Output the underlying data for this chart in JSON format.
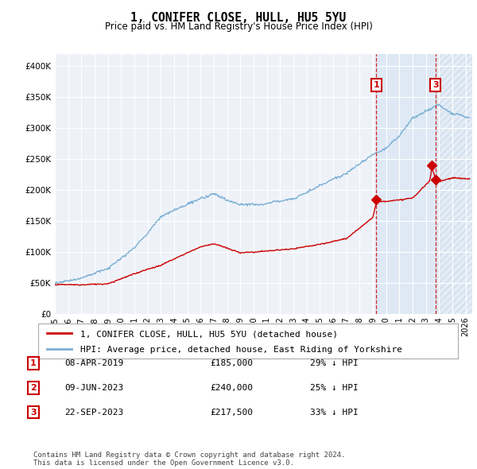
{
  "title": "1, CONIFER CLOSE, HULL, HU5 5YU",
  "subtitle": "Price paid vs. HM Land Registry's House Price Index (HPI)",
  "ylim": [
    0,
    420000
  ],
  "yticks": [
    0,
    50000,
    100000,
    150000,
    200000,
    250000,
    300000,
    350000,
    400000
  ],
  "xlim_start": 1995.0,
  "xlim_end": 2026.5,
  "background_color": "#ffffff",
  "plot_bg_color": "#eef2f8",
  "grid_color": "#ffffff",
  "legend_label_red": "1, CONIFER CLOSE, HULL, HU5 5YU (detached house)",
  "legend_label_blue": "HPI: Average price, detached house, East Riding of Yorkshire",
  "footer": "Contains HM Land Registry data © Crown copyright and database right 2024.\nThis data is licensed under the Open Government Licence v3.0.",
  "transactions": [
    {
      "num": 1,
      "date": "08-APR-2019",
      "price": "£185,000",
      "hpi": "29% ↓ HPI",
      "year": 2019.27,
      "price_val": 185000
    },
    {
      "num": 2,
      "date": "09-JUN-2023",
      "price": "£240,000",
      "hpi": "25% ↓ HPI",
      "year": 2023.44,
      "price_val": 240000
    },
    {
      "num": 3,
      "date": "22-SEP-2023",
      "price": "£217,500",
      "hpi": "33% ↓ HPI",
      "year": 2023.73,
      "price_val": 217500
    }
  ],
  "red_line_color": "#cc0000",
  "blue_line_color": "#7bafd4",
  "shaded_region_color": "#dce8f5",
  "dashed_line_color": "#cc0000",
  "note_box_color": "#cc0000"
}
